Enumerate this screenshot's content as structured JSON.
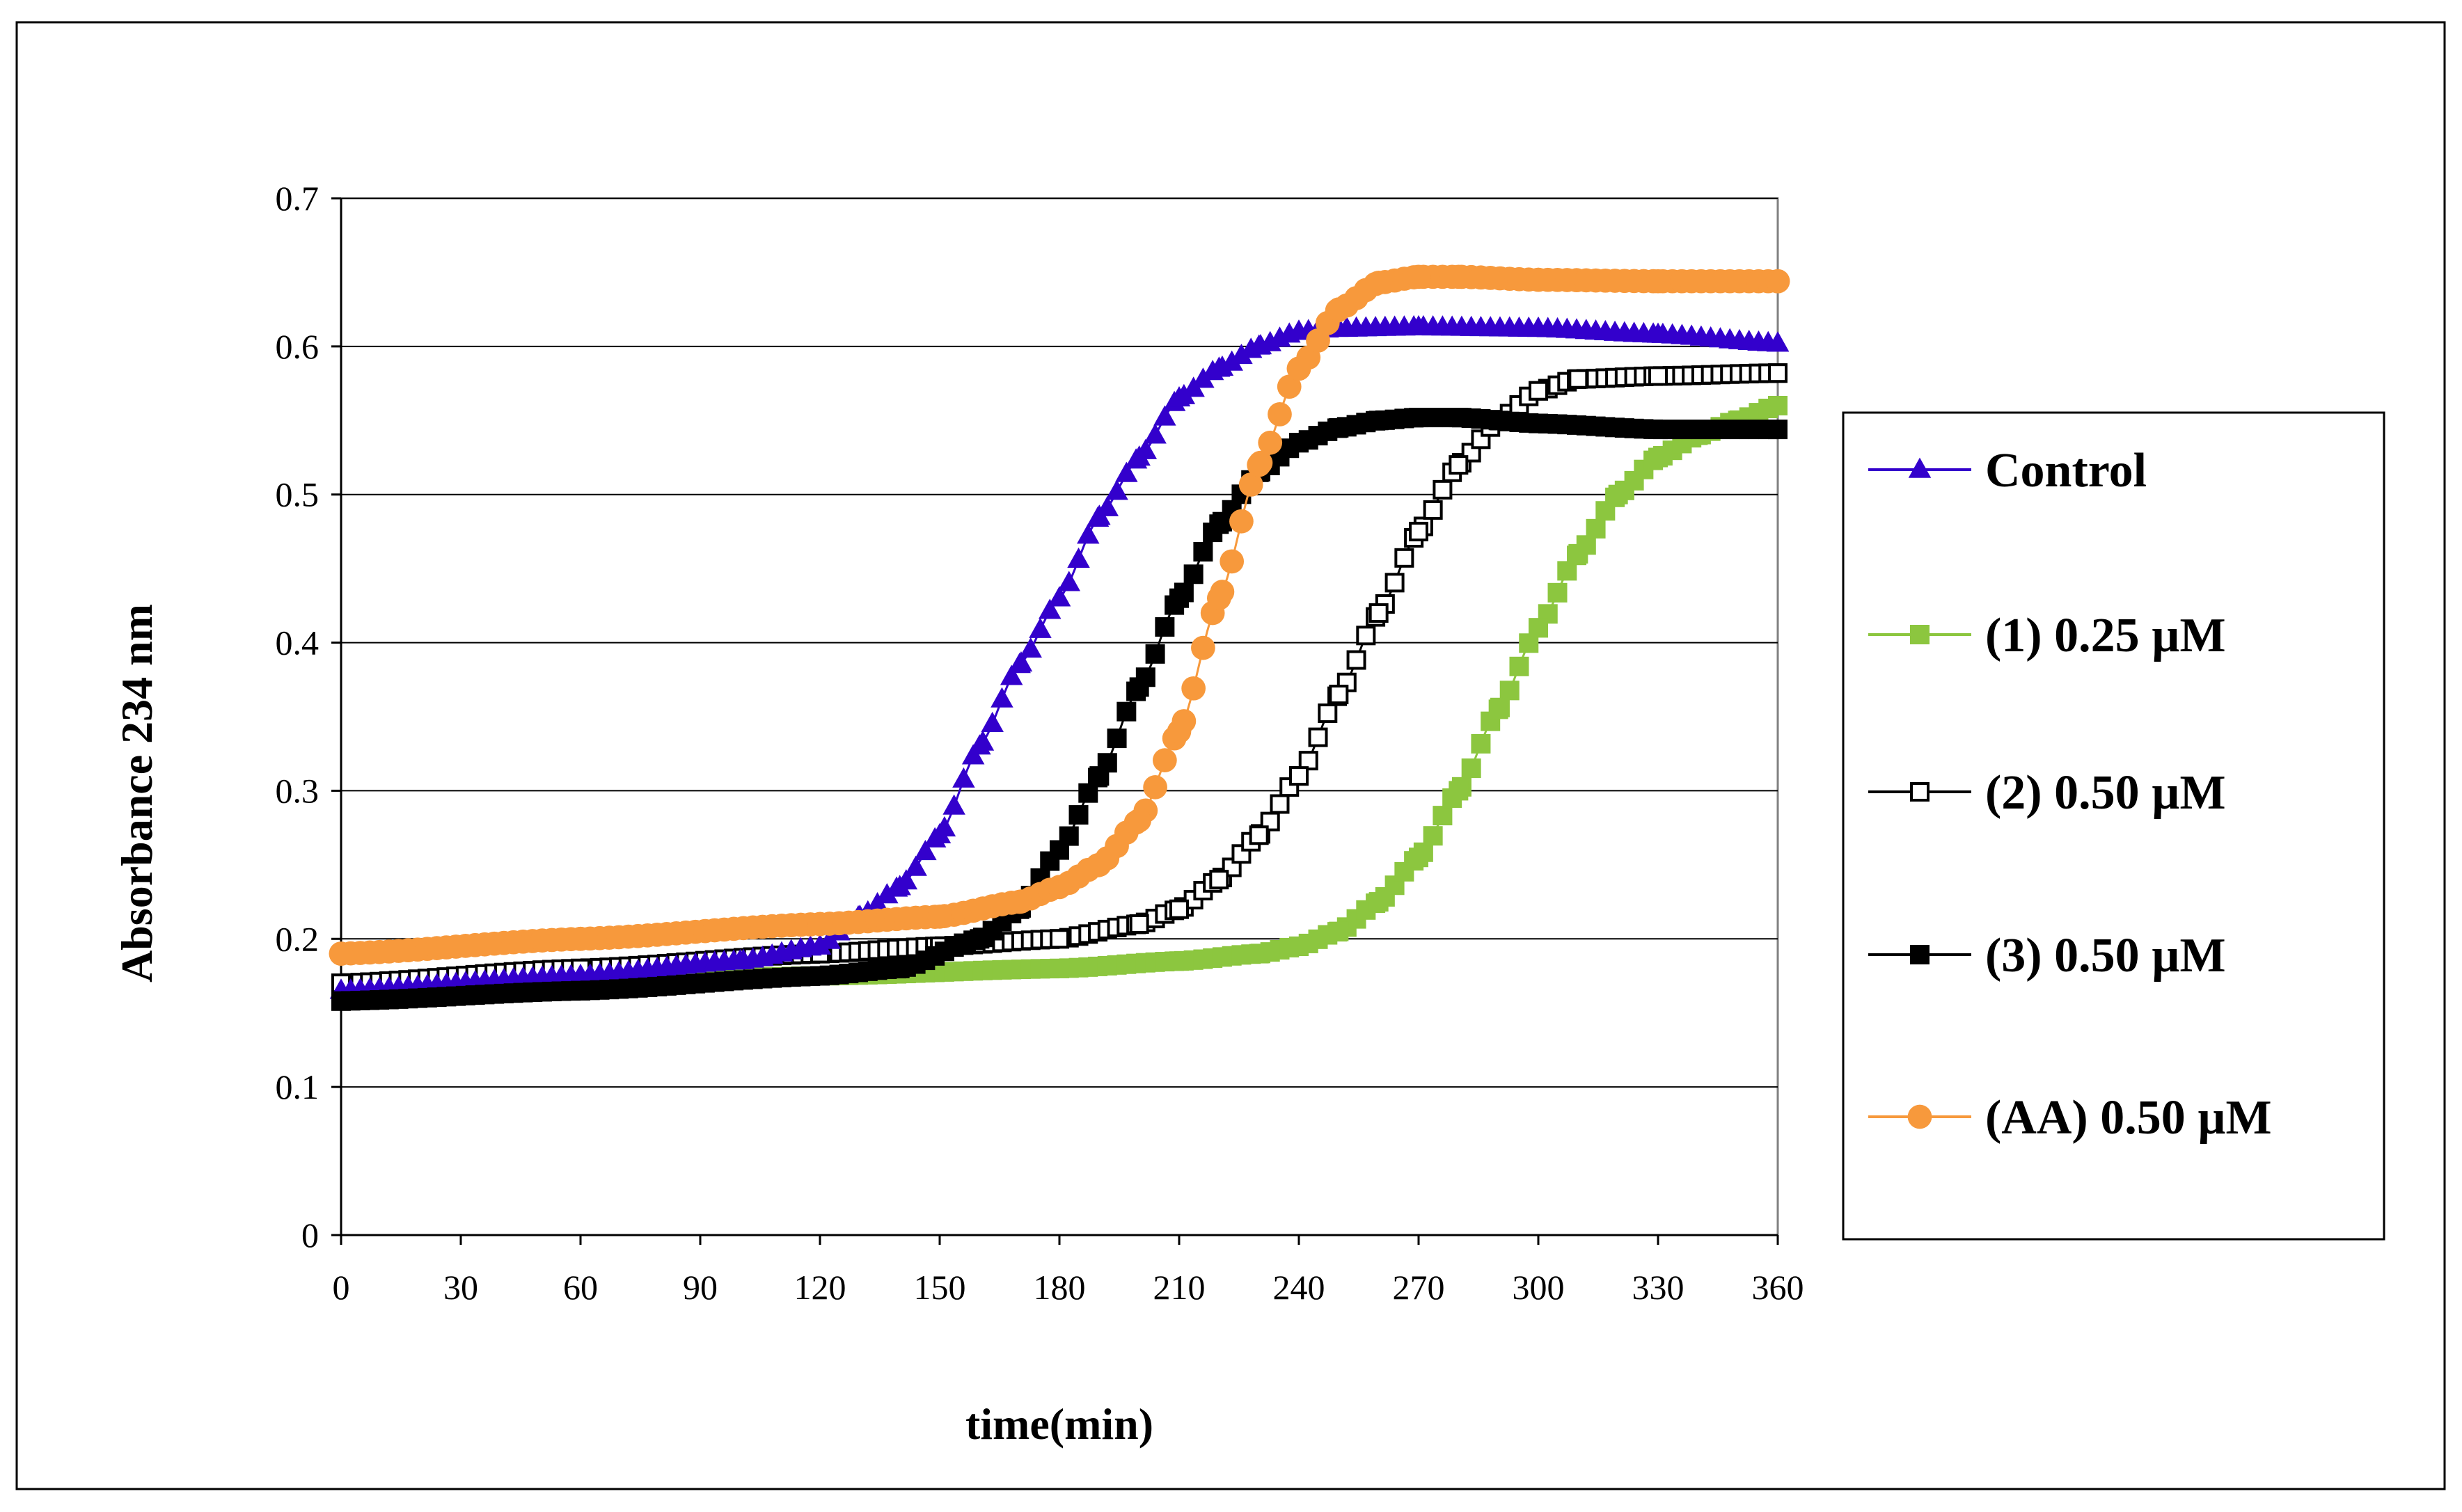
{
  "chart_data": {
    "type": "line",
    "xlabel": "time(min)",
    "ylabel": "Absorbance 234 nm",
    "xlim": [
      0,
      360
    ],
    "ylim": [
      0,
      0.7
    ],
    "xticks": [
      0,
      30,
      60,
      90,
      120,
      150,
      180,
      210,
      240,
      270,
      300,
      330,
      360
    ],
    "xtick_labels": [
      "0",
      "30",
      "60",
      "90",
      "120",
      "150",
      "180",
      "210",
      "240",
      "270",
      "300",
      "330",
      "360"
    ],
    "yticks": [
      0,
      0.1,
      0.2,
      0.3,
      0.4,
      0.5,
      0.6,
      0.7
    ],
    "ytick_labels": [
      "0",
      "0.1",
      "0.2",
      "0.3",
      "0.4",
      "0.5",
      "0.6",
      "0.7"
    ],
    "grid": "horizontal",
    "legend_position": "right",
    "series": [
      {
        "name": "Control",
        "color": "#3300cc",
        "marker": "triangle",
        "x": [
          0,
          60,
          100,
          120,
          130,
          140,
          150,
          160,
          170,
          180,
          190,
          200,
          210,
          220,
          230,
          240,
          250,
          270,
          300,
          330,
          360
        ],
        "y": [
          0.165,
          0.175,
          0.185,
          0.195,
          0.215,
          0.235,
          0.27,
          0.33,
          0.385,
          0.43,
          0.485,
          0.525,
          0.565,
          0.585,
          0.6,
          0.61,
          0.612,
          0.613,
          0.612,
          0.608,
          0.602
        ]
      },
      {
        "name": "(1) 0.25 µM",
        "color": "#8cc63f",
        "marker": "square",
        "x": [
          0,
          60,
          120,
          180,
          210,
          230,
          240,
          250,
          260,
          270,
          280,
          290,
          300,
          310,
          320,
          330,
          340,
          350,
          360
        ],
        "y": [
          0.165,
          0.17,
          0.175,
          0.18,
          0.185,
          0.19,
          0.195,
          0.205,
          0.225,
          0.255,
          0.3,
          0.355,
          0.41,
          0.46,
          0.5,
          0.525,
          0.54,
          0.55,
          0.56
        ]
      },
      {
        "name": "(2) 0.50 µM",
        "color": "#000000",
        "marker": "square-open",
        "x": [
          0,
          60,
          120,
          150,
          180,
          200,
          210,
          220,
          230,
          240,
          250,
          260,
          270,
          280,
          290,
          300,
          310,
          330,
          360
        ],
        "y": [
          0.17,
          0.18,
          0.19,
          0.195,
          0.2,
          0.21,
          0.22,
          0.24,
          0.27,
          0.31,
          0.365,
          0.42,
          0.475,
          0.52,
          0.55,
          0.57,
          0.578,
          0.58,
          0.582
        ]
      },
      {
        "name": "(3)  0.50 µM",
        "color": "#000000",
        "marker": "square",
        "x": [
          0,
          60,
          120,
          140,
          160,
          170,
          180,
          190,
          200,
          210,
          220,
          230,
          240,
          250,
          260,
          270,
          280,
          300,
          330,
          360
        ],
        "y": [
          0.158,
          0.165,
          0.175,
          0.18,
          0.2,
          0.22,
          0.26,
          0.31,
          0.37,
          0.43,
          0.48,
          0.515,
          0.535,
          0.545,
          0.55,
          0.552,
          0.552,
          0.548,
          0.544,
          0.544
        ]
      },
      {
        "name": "(AA) 0.50 µM",
        "color": "#f7993c",
        "marker": "circle",
        "x": [
          0,
          60,
          120,
          150,
          170,
          180,
          190,
          200,
          210,
          220,
          230,
          240,
          250,
          260,
          270,
          280,
          300,
          330,
          360
        ],
        "y": [
          0.19,
          0.2,
          0.21,
          0.215,
          0.225,
          0.235,
          0.25,
          0.28,
          0.34,
          0.43,
          0.52,
          0.585,
          0.625,
          0.643,
          0.647,
          0.647,
          0.645,
          0.644,
          0.644
        ]
      }
    ]
  }
}
